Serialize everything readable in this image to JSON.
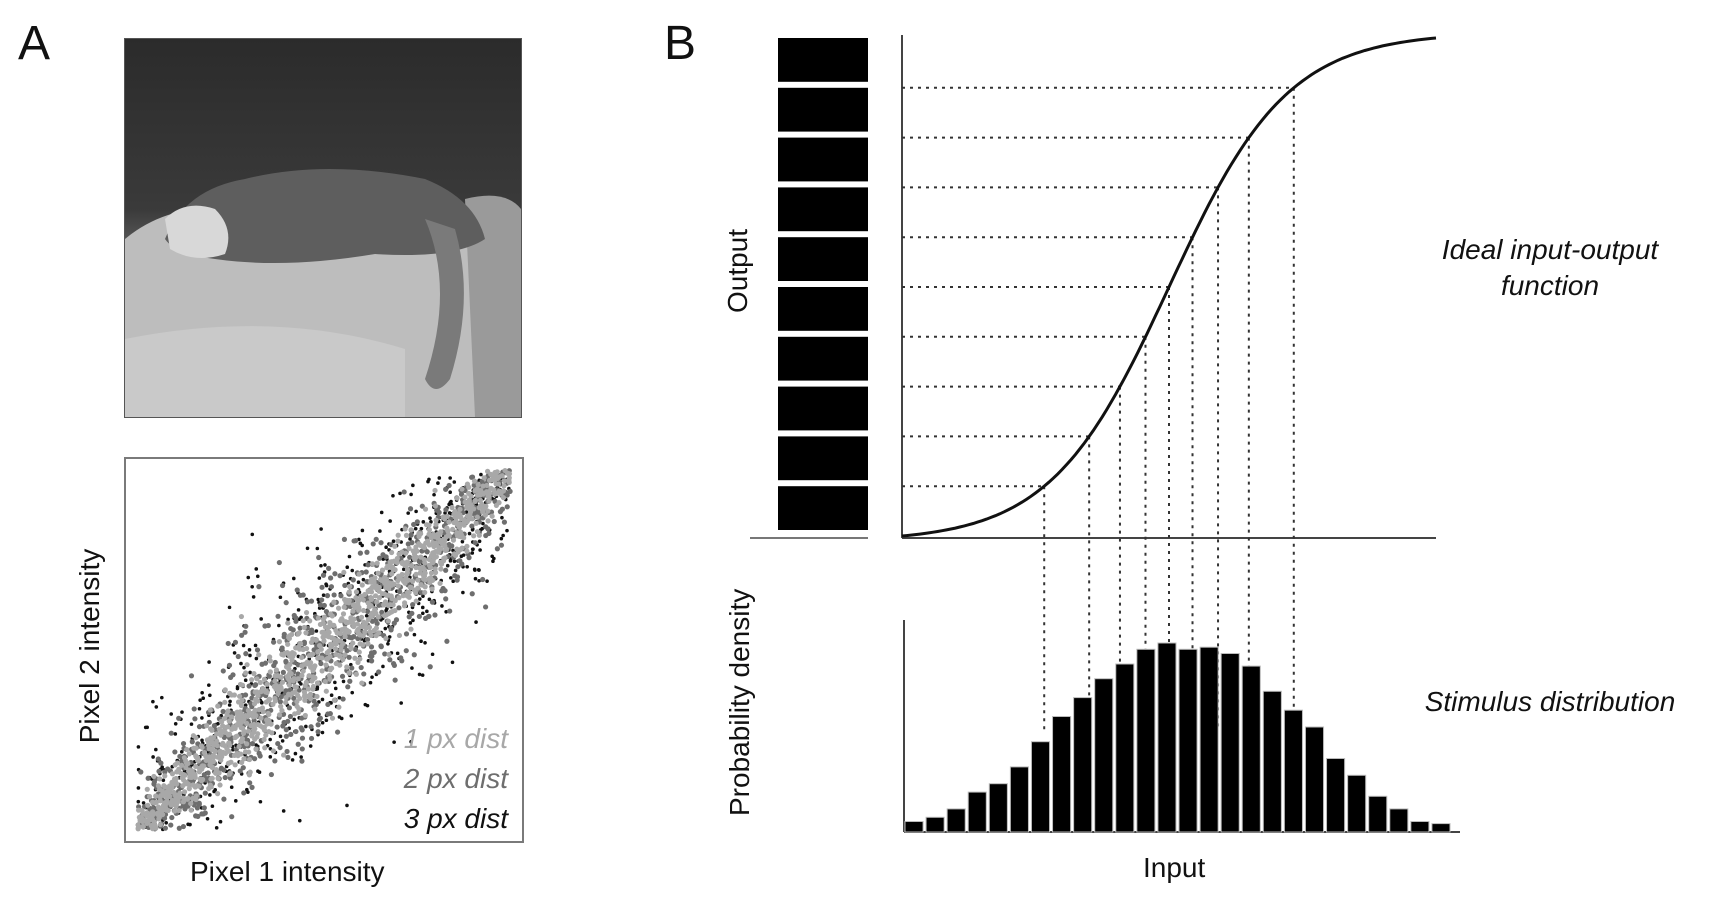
{
  "panel_a": {
    "letter": "A",
    "scatter": {
      "xlabel": "Pixel 1 intensity",
      "ylabel": "Pixel 2 intensity",
      "legend": [
        {
          "label": "1 px dist",
          "color": "#a8a8a8"
        },
        {
          "label": "2 px dist",
          "color": "#6e6e6e"
        },
        {
          "label": "3 px dist",
          "color": "#111111"
        }
      ]
    }
  },
  "panel_b": {
    "letter": "B",
    "top": {
      "ylabel": "Output",
      "annotation_line1": "Ideal input-output",
      "annotation_line2": "function"
    },
    "bottom": {
      "ylabel": "Probability density",
      "xlabel": "Input",
      "annotation": "Stimulus distribution"
    }
  },
  "chart_data": [
    {
      "type": "scatter",
      "title": "",
      "xlabel": "Pixel 1 intensity",
      "ylabel": "Pixel 2 intensity",
      "grid": false,
      "legend_position": "bottom-right",
      "series": [
        {
          "name": "1 px dist",
          "color": "#a8a8a8",
          "spread": 0.06
        },
        {
          "name": "2 px dist",
          "color": "#6e6e6e",
          "spread": 0.1
        },
        {
          "name": "3 px dist",
          "color": "#111111",
          "spread": 0.14
        }
      ]
    },
    {
      "type": "line",
      "title": "",
      "xlabel": "",
      "ylabel": "Output",
      "grid": false,
      "curve": "sigmoid",
      "output_levels": 10,
      "x": [
        0,
        0.1,
        0.2,
        0.3,
        0.4,
        0.5,
        0.6,
        0.7,
        0.8,
        0.9,
        1.0
      ],
      "y": [
        0,
        0.02,
        0.05,
        0.12,
        0.3,
        0.5,
        0.7,
        0.86,
        0.94,
        0.98,
        1.0
      ]
    },
    {
      "type": "bar",
      "title": "",
      "xlabel": "Input",
      "ylabel": "Probability density",
      "grid": false,
      "values": [
        0.05,
        0.07,
        0.11,
        0.19,
        0.23,
        0.31,
        0.43,
        0.55,
        0.64,
        0.73,
        0.8,
        0.87,
        0.9,
        0.87,
        0.88,
        0.85,
        0.79,
        0.67,
        0.58,
        0.5,
        0.35,
        0.27,
        0.17,
        0.11,
        0.05,
        0.04
      ]
    }
  ]
}
